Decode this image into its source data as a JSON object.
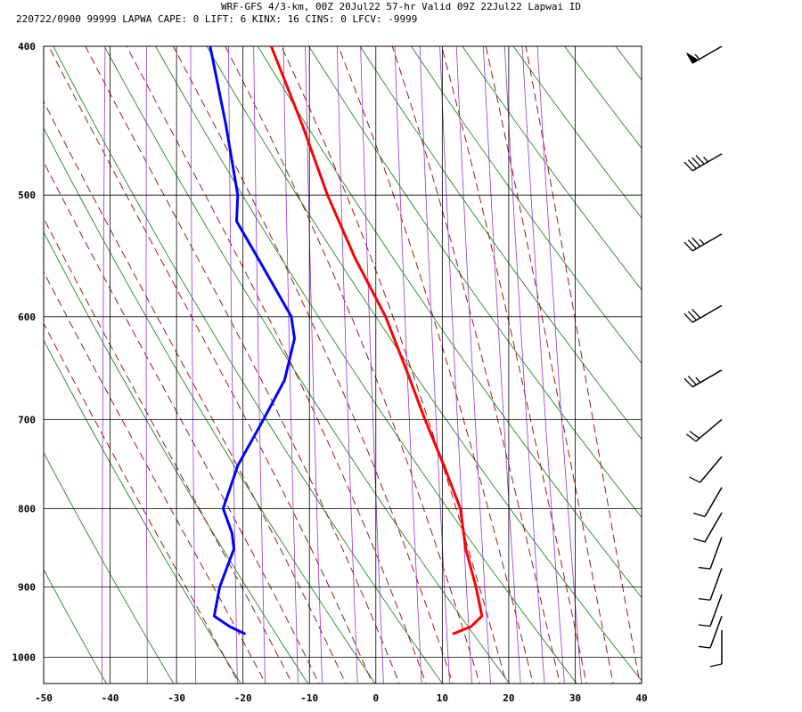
{
  "header": {
    "line1": "WRF-GFS 4/3-km, 00Z 20Jul22 57-hr Valid 09Z 22Jul22 Lapwai ID",
    "line2": "220722/0900 99999  LAPWA   CAPE:     0 LIFT:     6 KINX:    16 CINS:     0 LFCV: -9999"
  },
  "chart_data": {
    "type": "line",
    "title": "WRF-GFS 4/3-km, 00Z 20Jul22 57-hr Valid 09Z 22Jul22 Lapwai ID",
    "xlabel": "",
    "ylabel": "",
    "x_scale": "skewed temperature (deg C)",
    "y_scale": "log pressure (hPa)",
    "xlim": [
      -50,
      40
    ],
    "ylim": [
      1040,
      400
    ],
    "x_ticks": [
      "-50",
      "-40",
      "-30",
      "-20",
      "-10",
      "0",
      "10",
      "20",
      "30",
      "40"
    ],
    "y_ticks": [
      "400",
      "500",
      "600",
      "700",
      "800",
      "900",
      "1000"
    ],
    "grid": true,
    "colors": {
      "temperature": "#ff0000",
      "dewpoint": "#0000ff",
      "dry_adiabat": "#008000",
      "moist_adiabat": "#990000",
      "mixing_ratio": "#9933cc",
      "grid": "#000000"
    },
    "series": [
      {
        "points": [
          {
            "p": 400,
            "t": -24.9
          },
          {
            "p": 450,
            "t": -19.1
          },
          {
            "p": 500,
            "t": -14.3
          },
          {
            "p": 550,
            "t": -9.2
          },
          {
            "p": 600,
            "t": -3.8
          },
          {
            "p": 650,
            "t": 0.1
          },
          {
            "p": 700,
            "t": 3.6
          },
          {
            "p": 750,
            "t": 7.1
          },
          {
            "p": 800,
            "t": 10.2
          },
          {
            "p": 850,
            "t": 11.6
          },
          {
            "p": 900,
            "t": 13.7
          },
          {
            "p": 940,
            "t": 15.0
          },
          {
            "p": 955,
            "t": 13.5
          },
          {
            "p": 965,
            "t": 11.0
          }
        ]
      },
      {
        "points": [
          {
            "p": 400,
            "t": -34.1
          },
          {
            "p": 450,
            "t": -30.6
          },
          {
            "p": 500,
            "t": -27.8
          },
          {
            "p": 520,
            "t": -27.6
          },
          {
            "p": 550,
            "t": -23.8
          },
          {
            "p": 600,
            "t": -18.0
          },
          {
            "p": 620,
            "t": -17.2
          },
          {
            "p": 660,
            "t": -18.1
          },
          {
            "p": 700,
            "t": -20.7
          },
          {
            "p": 750,
            "t": -23.9
          },
          {
            "p": 800,
            "t": -25.5
          },
          {
            "p": 830,
            "t": -23.8
          },
          {
            "p": 850,
            "t": -23.3
          },
          {
            "p": 900,
            "t": -24.9
          },
          {
            "p": 940,
            "t": -25.3
          },
          {
            "p": 955,
            "t": -22.8
          },
          {
            "p": 965,
            "t": -20.5
          }
        ]
      }
    ],
    "wind_barbs": [
      {
        "p": 400,
        "dir": 240,
        "speed_kt": 55
      },
      {
        "p": 470,
        "dir": 240,
        "speed_kt": 45
      },
      {
        "p": 530,
        "dir": 240,
        "speed_kt": 35
      },
      {
        "p": 590,
        "dir": 240,
        "speed_kt": 30
      },
      {
        "p": 650,
        "dir": 240,
        "speed_kt": 25
      },
      {
        "p": 700,
        "dir": 230,
        "speed_kt": 20
      },
      {
        "p": 740,
        "dir": 220,
        "speed_kt": 10
      },
      {
        "p": 775,
        "dir": 210,
        "speed_kt": 10
      },
      {
        "p": 805,
        "dir": 210,
        "speed_kt": 10
      },
      {
        "p": 835,
        "dir": 200,
        "speed_kt": 10
      },
      {
        "p": 875,
        "dir": 200,
        "speed_kt": 10
      },
      {
        "p": 910,
        "dir": 200,
        "speed_kt": 10
      },
      {
        "p": 940,
        "dir": 200,
        "speed_kt": 10
      },
      {
        "p": 960,
        "dir": 180,
        "speed_kt": 10
      }
    ]
  }
}
